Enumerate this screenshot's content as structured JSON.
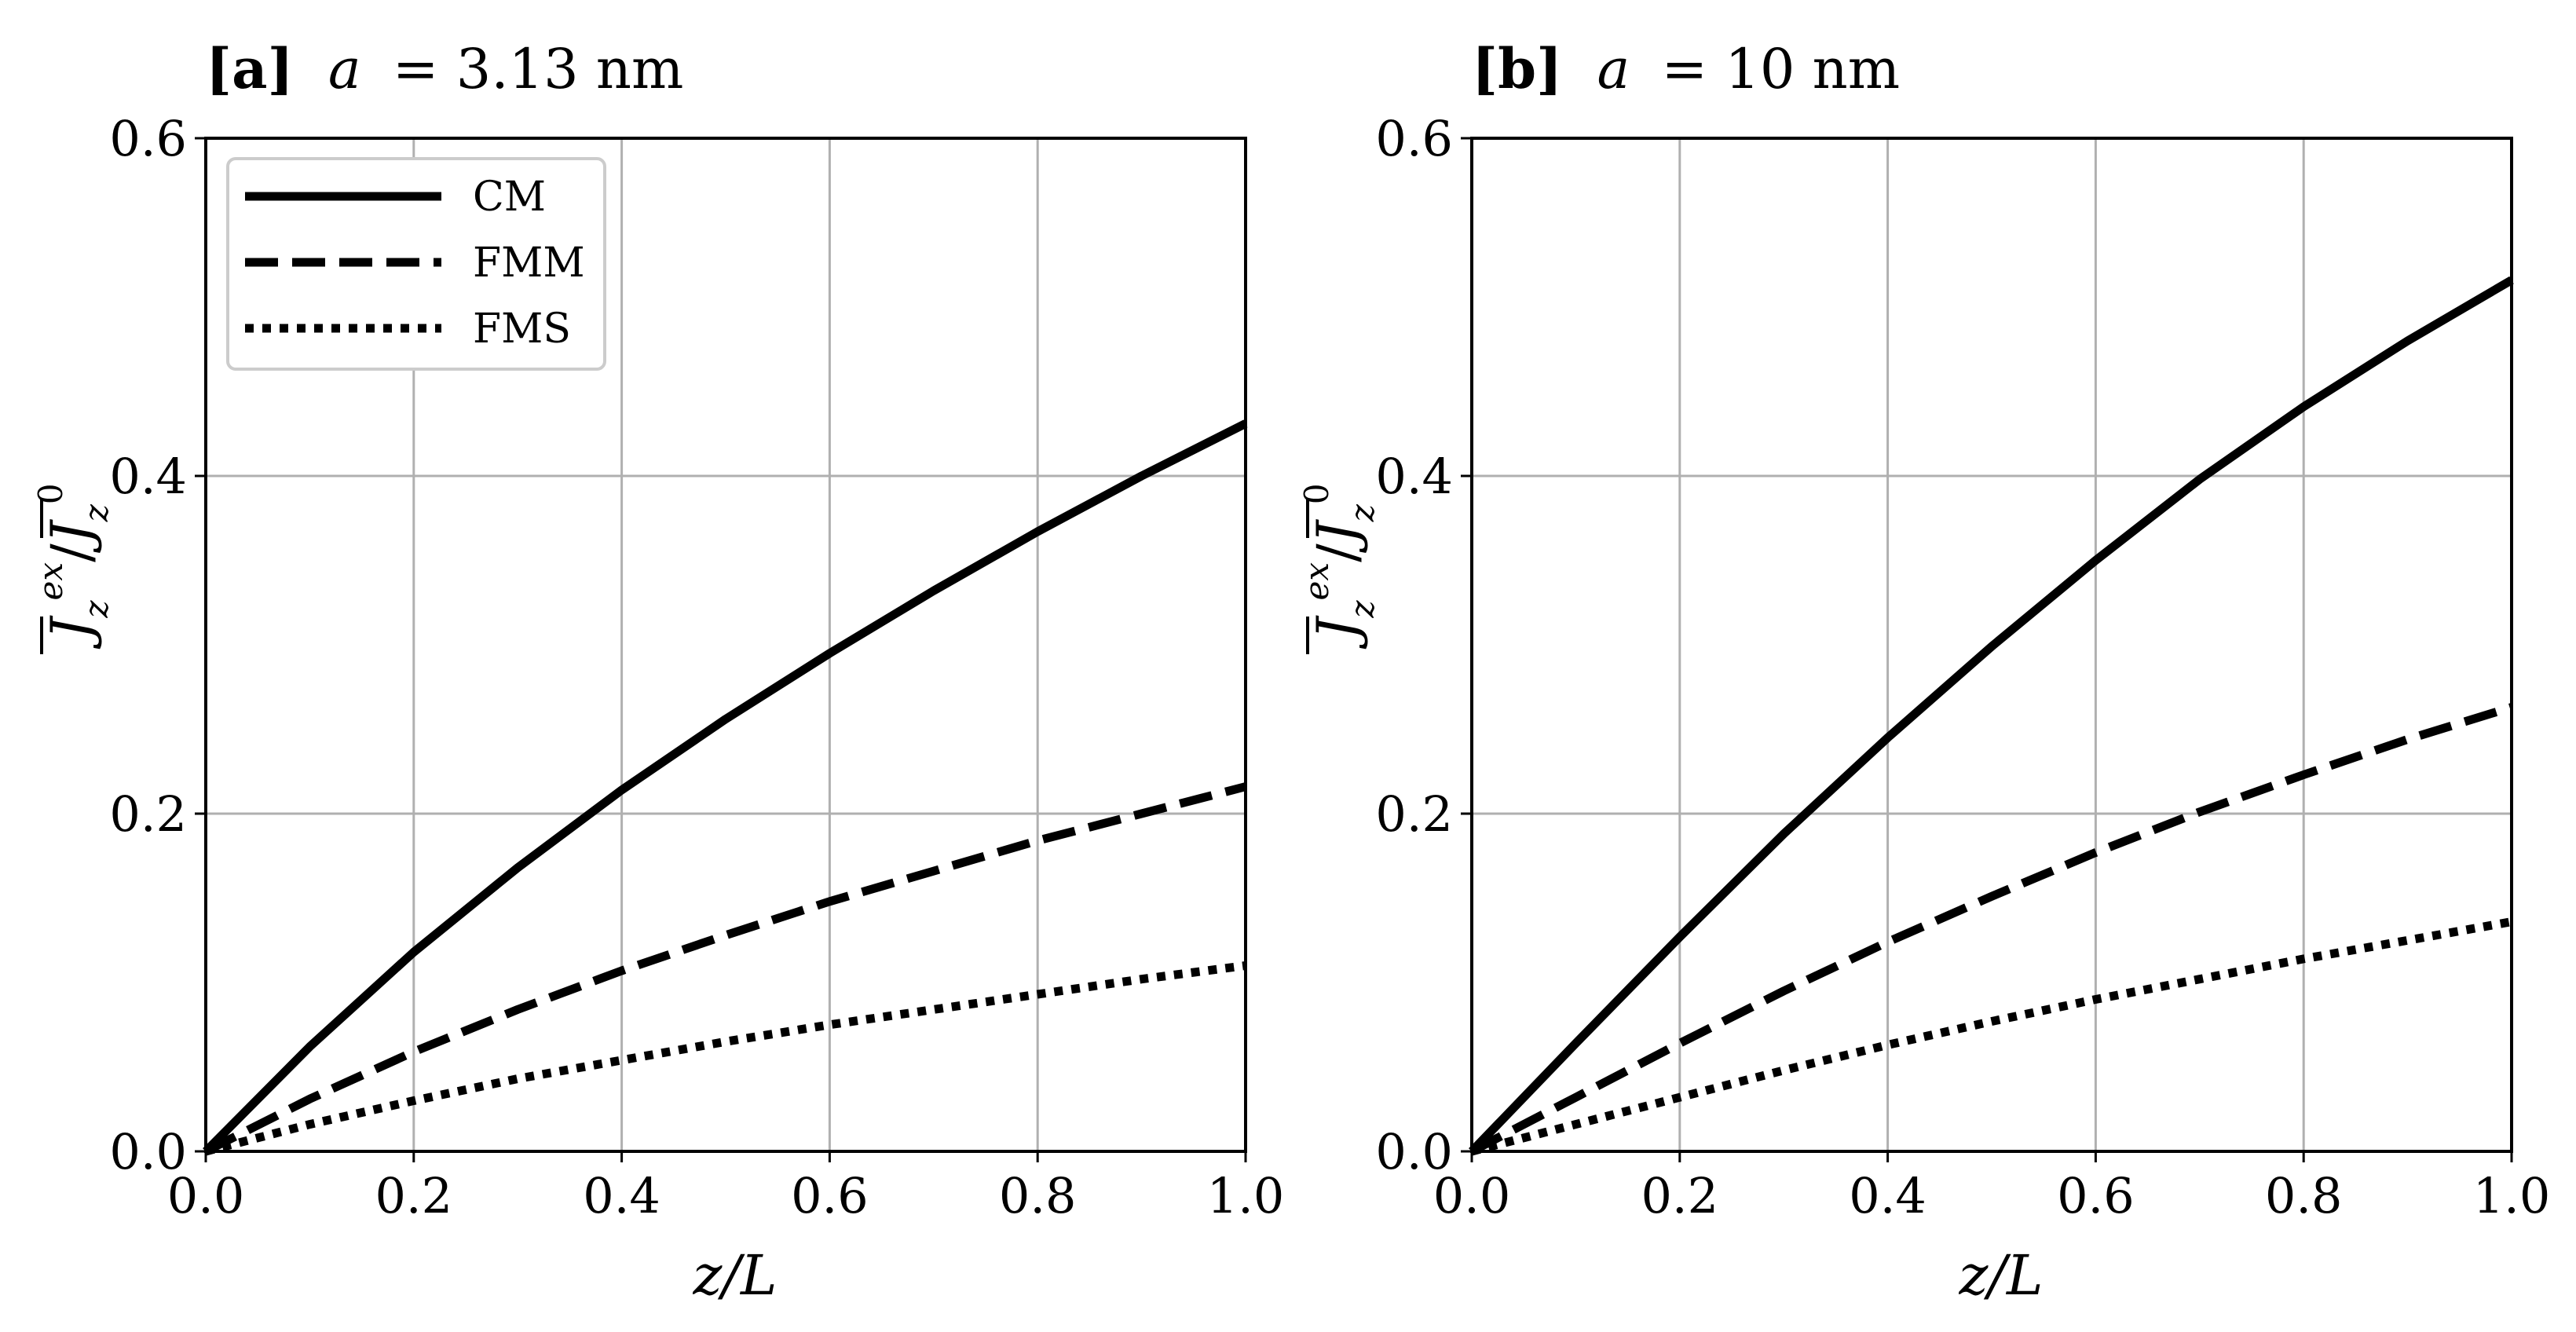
{
  "chart_data": [
    {
      "type": "line",
      "panel_label": "[a]",
      "title": "a = 3.13 nm",
      "title_prefix": "a",
      "title_value": "= 3.13 nm",
      "xlabel": "z/L",
      "ylabel_main": "J",
      "ylabel_sup_num": "ex",
      "ylabel_sub": "z",
      "ylabel_sup_den": "0",
      "xlim": [
        0.0,
        1.0
      ],
      "ylim": [
        0.0,
        0.6
      ],
      "xticks": [
        "0.0",
        "0.2",
        "0.4",
        "0.6",
        "0.8",
        "1.0"
      ],
      "yticks": [
        "0.0",
        "0.2",
        "0.4",
        "0.6"
      ],
      "grid": true,
      "legend_position": "top-left",
      "x": [
        0.0,
        0.1,
        0.2,
        0.3,
        0.4,
        0.5,
        0.6,
        0.7,
        0.8,
        0.9,
        1.0
      ],
      "series": [
        {
          "name": "CM",
          "style": "solid",
          "values": [
            0.0,
            0.062,
            0.118,
            0.168,
            0.214,
            0.256,
            0.295,
            0.332,
            0.367,
            0.4,
            0.431
          ]
        },
        {
          "name": "FMM",
          "style": "dashed",
          "values": [
            0.0,
            0.031,
            0.059,
            0.084,
            0.107,
            0.128,
            0.148,
            0.166,
            0.184,
            0.2,
            0.216
          ]
        },
        {
          "name": "FMS",
          "style": "dotted",
          "values": [
            0.0,
            0.016,
            0.03,
            0.043,
            0.054,
            0.065,
            0.075,
            0.084,
            0.093,
            0.102,
            0.11
          ]
        }
      ]
    },
    {
      "type": "line",
      "panel_label": "[b]",
      "title": "a = 10 nm",
      "title_prefix": "a",
      "title_value": "= 10 nm",
      "xlabel": "z/L",
      "ylabel_main": "J",
      "ylabel_sup_num": "ex",
      "ylabel_sub": "z",
      "ylabel_sup_den": "0",
      "xlim": [
        0.0,
        1.0
      ],
      "ylim": [
        0.0,
        0.6
      ],
      "xticks": [
        "0.0",
        "0.2",
        "0.4",
        "0.6",
        "0.8",
        "1.0"
      ],
      "yticks": [
        "0.0",
        "0.2",
        "0.4",
        "0.6"
      ],
      "grid": true,
      "legend_position": "none",
      "x": [
        0.0,
        0.1,
        0.2,
        0.3,
        0.4,
        0.5,
        0.6,
        0.7,
        0.8,
        0.9,
        1.0
      ],
      "series": [
        {
          "name": "CM",
          "style": "solid",
          "values": [
            0.0,
            0.064,
            0.127,
            0.188,
            0.245,
            0.299,
            0.35,
            0.398,
            0.441,
            0.48,
            0.516
          ]
        },
        {
          "name": "FMM",
          "style": "dashed",
          "values": [
            0.0,
            0.032,
            0.064,
            0.095,
            0.124,
            0.151,
            0.177,
            0.201,
            0.223,
            0.244,
            0.263
          ]
        },
        {
          "name": "FMS",
          "style": "dotted",
          "values": [
            0.0,
            0.016,
            0.032,
            0.048,
            0.063,
            0.077,
            0.09,
            0.102,
            0.114,
            0.125,
            0.136
          ]
        }
      ]
    }
  ],
  "colors": {
    "line": "#000000",
    "grid": "#b0b0b0",
    "axes": "#000000",
    "legend_border": "#cccccc",
    "background": "#ffffff"
  }
}
